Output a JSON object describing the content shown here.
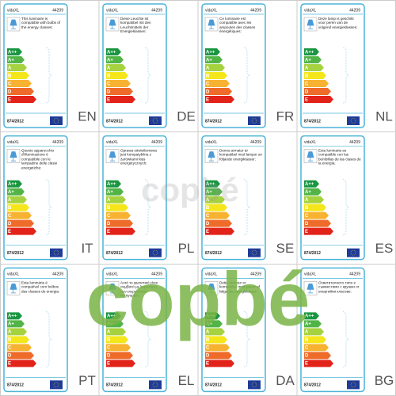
{
  "brand": "vidaXL",
  "code": "44209",
  "regulation": "874/2012",
  "classes": [
    "A++",
    "A+",
    "A",
    "B",
    "C",
    "D",
    "E"
  ],
  "watermark": "copbé",
  "labels": [
    {
      "lang": "EN",
      "text": "This luminaire is compatible with bulbs of the energy classes:"
    },
    {
      "lang": "DE",
      "text": "Diese Leuchte ist kompatibel mit den Leuchtmitteln der Energieklassen:"
    },
    {
      "lang": "FR",
      "text": "Ce luminaire est compatible avec les ampoules des classes énergétiques:"
    },
    {
      "lang": "NL",
      "text": "Deze lamp is geschikt voor peren van de volgend energieklassen:"
    },
    {
      "lang": "IT",
      "text": "Questo apparecchio d'illuminazione è compatibile con le lampadine delle classi energetiche:"
    },
    {
      "lang": "PL",
      "text": "Oprawa oświetleniowa jest kompatybilna z żarówkami klas energetycznych:"
    },
    {
      "lang": "SE",
      "text": "Denna armatur är kompatibel med lampor av följande energiklasser:"
    },
    {
      "lang": "ES",
      "text": "Esta luminaria es compatible con las bombillas de las clases de la energía:"
    },
    {
      "lang": "PT",
      "text": "Esta luminária é compatível com bulbos das classes de energia:"
    },
    {
      "lang": "EL",
      "text": "Αυτό το φωτιστικό είναι συμβατό με λαμπτήρες των ενεργειακών κατηγοριών:"
    },
    {
      "lang": "DA",
      "text": "Dette armatur er kompatibel med pærer af følgende energiklasser:"
    },
    {
      "lang": "BG",
      "text": "Осветителното тяло е съвместимо с крушки от енергийни класове:"
    }
  ]
}
